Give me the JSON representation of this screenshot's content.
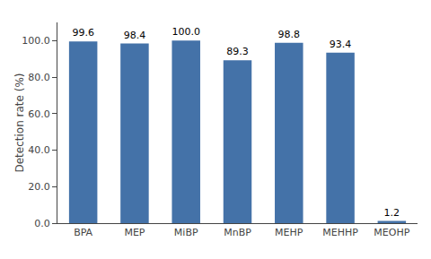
{
  "chart_data": {
    "type": "bar",
    "categories": [
      "BPA",
      "MEP",
      "MiBP",
      "MnBP",
      "MEHP",
      "MEHHP",
      "MEOHP"
    ],
    "values": [
      99.6,
      98.4,
      100.0,
      89.3,
      98.8,
      93.4,
      1.2
    ],
    "value_labels": [
      "99.6",
      "98.4",
      "100.0",
      "89.3",
      "98.8",
      "93.4",
      "1.2"
    ],
    "data_labels": true,
    "color": "#4472a8",
    "ylabel": "Detection rate (%)",
    "ylim": [
      0,
      110
    ],
    "yticks": [
      {
        "value": 0,
        "label": "0.0"
      },
      {
        "value": 20,
        "label": "20.0"
      },
      {
        "value": 40,
        "label": "40.0"
      },
      {
        "value": 60,
        "label": "60.0"
      },
      {
        "value": 80,
        "label": "80.0"
      },
      {
        "value": 100,
        "label": "100.0"
      }
    ],
    "grid": false
  }
}
